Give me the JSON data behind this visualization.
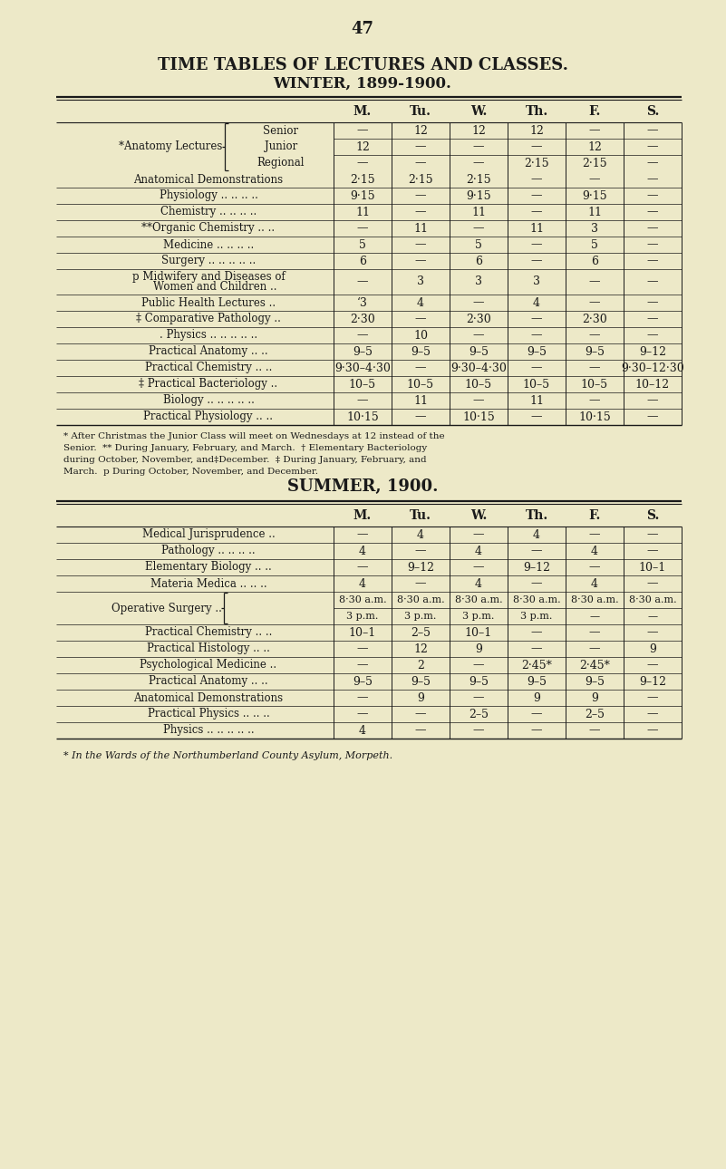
{
  "bg_color": "#ede9c8",
  "text_color": "#1a1a1a",
  "page_number": "47",
  "title1": "TIME TABLES OF LECTURES AND CLASSES.",
  "title2": "WINTER, 1899-1900.",
  "summer_title": "SUMMER, 1900.",
  "footer_note": "* In the Wards of the Northumberland County Asylum, Morpeth.",
  "winter_footnote_lines": [
    "* After Christmas the Junior Class will meet on Wednesdays at 12 instead of the",
    "Senior.  ** During January, February, and March.  † Elementary Bacteriology",
    "during October, November, and‡December.  ‡ During January, February, and",
    "March.  p During October, November, and December."
  ],
  "col_headers": [
    "M.",
    "Tu.",
    "W.",
    "Th.",
    "F.",
    "S."
  ],
  "winter_rows": [
    [
      "Senior",
      "—",
      "12",
      "12",
      "12",
      "—",
      "—"
    ],
    [
      "Junior",
      "12",
      "—",
      "—",
      "—",
      "12",
      "—"
    ],
    [
      "Regional",
      "—",
      "—",
      "—",
      "2·15",
      "2·15",
      "—"
    ],
    [
      "Anatomical Demonstrations",
      "2·15",
      "2·15",
      "2·15",
      "—",
      "—",
      "—"
    ],
    [
      "Physiology .. .. .. ..",
      "9·15",
      "—",
      "9·15",
      "—",
      "9·15",
      "—"
    ],
    [
      "Chemistry .. .. .. ..",
      "11",
      "—",
      "11",
      "—",
      "11",
      "—"
    ],
    [
      "**Organic Chemistry .. ..",
      "—",
      "11",
      "—",
      "11",
      "3",
      "—"
    ],
    [
      "Medicine .. .. .. ..",
      "5",
      "—",
      "5",
      "—",
      "5",
      "—"
    ],
    [
      "Surgery .. .. .. .. ..",
      "6",
      "—",
      "6",
      "—",
      "6",
      "—"
    ],
    [
      "p Midwifery and Diseases of",
      "—",
      "3",
      "3",
      "3",
      "—",
      "—"
    ],
    [
      "Public Health Lectures ..",
      "‘3",
      "4",
      "—",
      "4",
      "—",
      "—"
    ],
    [
      "‡ Comparative Pathology ..",
      "2·30",
      "—",
      "2·30",
      "—",
      "2·30",
      "—"
    ],
    [
      ". Physics .. .. .. .. ..",
      "—",
      "10",
      "—",
      "—",
      "—",
      "—"
    ],
    [
      "Practical Anatomy .. ..",
      "9–5",
      "9–5",
      "9–5",
      "9–5",
      "9–5",
      "9–12"
    ],
    [
      "Practical Chemistry .. ..",
      "9·30–4·30",
      "—",
      "9·30–4·30",
      "—",
      "—",
      "9·30–12·30"
    ],
    [
      "‡ Practical Bacteriology ..",
      "10–5",
      "10–5",
      "10–5",
      "10–5",
      "10–5",
      "10–12"
    ],
    [
      "Biology .. .. .. .. ..",
      "—",
      "11",
      "—",
      "11",
      "—",
      "—"
    ],
    [
      "Practical Physiology .. ..",
      "10·15",
      "—",
      "10·15",
      "—",
      "10·15",
      "—"
    ]
  ],
  "midwifery_second_line": "    Women and Children ..",
  "summer_rows": [
    [
      "Medical Jurisprudence ..",
      "—",
      "4",
      "—",
      "4",
      "—",
      "—"
    ],
    [
      "Pathology .. .. .. ..",
      "4",
      "—",
      "4",
      "—",
      "4",
      "—"
    ],
    [
      "Elementary Biology .. ..",
      "—",
      "9–12",
      "—",
      "9–12",
      "—",
      "10–1"
    ],
    [
      "Materia Medica .. .. ..",
      "4",
      "—",
      "4",
      "—",
      "4",
      "—"
    ],
    [
      "Operative Surgery ..",
      "8·30 a.m.",
      "8·30 a.m.",
      "8·30 a.m.",
      "8·30 a.m.",
      "8·30 a.m.",
      "8·30 a.m."
    ],
    [
      "Operative Surgery .. (2)",
      "3 p.m.",
      "3 p.m.",
      "3 p.m.",
      "3 p.m.",
      "—",
      "—"
    ],
    [
      "Practical Chemistry .. ..",
      "10–1",
      "2–5",
      "10–1",
      "—",
      "—",
      "—"
    ],
    [
      "Practical Histology .. ..",
      "—",
      "12",
      "9",
      "—",
      "—",
      "9"
    ],
    [
      "Psychological Medicine ..",
      "—",
      "2",
      "—",
      "2·45*",
      "2·45*",
      "—"
    ],
    [
      "Practical Anatomy .. ..",
      "9–5",
      "9–5",
      "9–5",
      "9–5",
      "9–5",
      "9–12"
    ],
    [
      "Anatomical Demonstrations",
      "—",
      "9",
      "—",
      "9",
      "9",
      "—"
    ],
    [
      "Practical Physics .. .. ..",
      "—",
      "—",
      "2–5",
      "—",
      "2–5",
      "—"
    ],
    [
      "Physics .. .. .. .. ..",
      "4",
      "—",
      "—",
      "—",
      "—",
      "—"
    ]
  ]
}
